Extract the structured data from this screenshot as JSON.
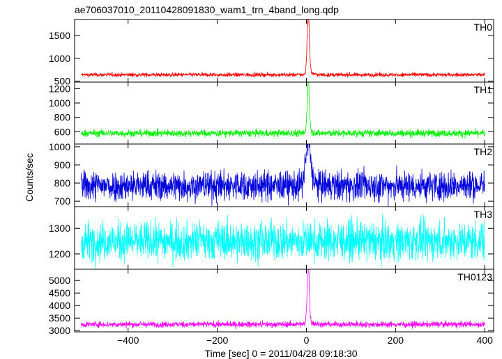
{
  "title": "ae706037010_20110428091830_wam1_trn_4band_long.qdp",
  "xlabel": "Time [sec] 0 = 2011/04/28 09:18:30",
  "ylabel": "Counts/sec",
  "chart_data": {
    "type": "line",
    "title": "ae706037010_20110428091830_wam1_trn_4band_long.qdp",
    "xlabel": "Time [sec] 0 = 2011/04/28 09:18:30",
    "ylabel": "Counts/sec",
    "xlim": [
      -520,
      420
    ],
    "x_ticks": [
      -400,
      -200,
      0,
      200,
      400
    ],
    "x_tick_labels": [
      "−400",
      "−200",
      "0",
      "200",
      "400"
    ],
    "x_range": [
      -505,
      400
    ],
    "panels": [
      {
        "name": "TH0",
        "color": "#ff0000",
        "ylim": [
          480,
          1850
        ],
        "y_ticks": [
          500,
          1000,
          1500
        ],
        "baseline": 640,
        "noise": 22,
        "peak": 1900,
        "peak_time": 4,
        "peak_width": 2.5
      },
      {
        "name": "TH1",
        "color": "#00ee00",
        "ylim": [
          430,
          1290
        ],
        "y_ticks": [
          600,
          800,
          1000,
          1200
        ],
        "baseline": 580,
        "noise": 25,
        "peak": 1270,
        "peak_time": 4,
        "peak_width": 2.5
      },
      {
        "name": "TH2",
        "color": "#0000dd",
        "ylim": [
          670,
          1015
        ],
        "y_ticks": [
          700,
          800,
          900,
          1000
        ],
        "baseline": 785,
        "noise": 42,
        "peak": 1005,
        "peak_time": 4,
        "peak_width": 6
      },
      {
        "name": "TH3",
        "color": "#00ffff",
        "ylim": [
          1140,
          1385
        ],
        "y_ticks": [
          1200,
          1300
        ],
        "baseline": 1250,
        "noise": 38,
        "peak": 1250,
        "peak_time": 4,
        "peak_width": 3
      },
      {
        "name": "TH0123",
        "color": "#ff00ff",
        "ylim": [
          2950,
          5450
        ],
        "y_ticks": [
          3000,
          3500,
          4000,
          4500,
          5000
        ],
        "baseline": 3250,
        "noise": 60,
        "peak": 5450,
        "peak_time": 4,
        "peak_width": 2.5
      }
    ]
  }
}
